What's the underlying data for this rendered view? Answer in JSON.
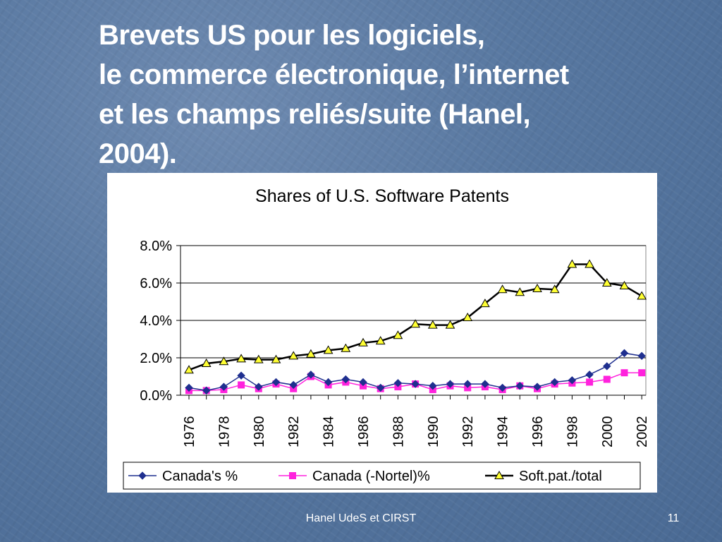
{
  "slide": {
    "title_lines": [
      "Brevets US pour les logiciels,",
      "le commerce électronique, l’internet",
      "et les champs reliés/suite (Hanel,",
      "2004)."
    ],
    "footer": "Hanel UdeS et CIRST",
    "page_number": "11"
  },
  "colors": {
    "background": "#5777a0",
    "canada": "#1f2f8f",
    "canada_nortel": "#ff22dd",
    "soft_pat": "#000000",
    "triangle_fill": "#ffff33"
  },
  "chart_data": {
    "type": "line",
    "title": "Shares of U.S. Software Patents",
    "x": [
      1976,
      1977,
      1978,
      1979,
      1980,
      1981,
      1982,
      1983,
      1984,
      1985,
      1986,
      1987,
      1988,
      1989,
      1990,
      1991,
      1992,
      1993,
      1994,
      1995,
      1996,
      1997,
      1998,
      1999,
      2000,
      2001,
      2002
    ],
    "x_tick_labels": [
      "1976",
      "1978",
      "1980",
      "1982",
      "1984",
      "1986",
      "1988",
      "1990",
      "1992",
      "1994",
      "1996",
      "1998",
      "2000",
      "2002"
    ],
    "y_tick_labels": [
      "0.0%",
      "2.0%",
      "4.0%",
      "6.0%",
      "8.0%"
    ],
    "ylim": [
      0,
      8
    ],
    "grid": true,
    "legend_position": "bottom",
    "series": [
      {
        "name": "Canada's %",
        "marker": "diamond",
        "values": [
          0.4,
          0.25,
          0.45,
          1.05,
          0.45,
          0.7,
          0.55,
          1.1,
          0.7,
          0.85,
          0.7,
          0.4,
          0.65,
          0.6,
          0.5,
          0.6,
          0.6,
          0.6,
          0.4,
          0.5,
          0.45,
          0.7,
          0.8,
          1.1,
          1.55,
          2.25,
          2.1
        ]
      },
      {
        "name": "Canada (-Nortel)%",
        "marker": "square",
        "values": [
          0.25,
          0.25,
          0.3,
          0.55,
          0.35,
          0.6,
          0.35,
          1.0,
          0.55,
          0.7,
          0.5,
          0.35,
          0.45,
          0.6,
          0.3,
          0.5,
          0.4,
          0.45,
          0.3,
          0.5,
          0.35,
          0.6,
          0.65,
          0.7,
          0.85,
          1.2,
          1.2
        ]
      },
      {
        "name": "Soft.pat./total",
        "marker": "triangle",
        "values": [
          1.35,
          1.7,
          1.8,
          1.95,
          1.9,
          1.9,
          2.1,
          2.2,
          2.4,
          2.5,
          2.8,
          2.9,
          3.2,
          3.8,
          3.75,
          3.75,
          4.15,
          4.9,
          5.65,
          5.5,
          5.7,
          5.65,
          7.0,
          7.0,
          6.0,
          5.85,
          5.3
        ]
      }
    ]
  }
}
